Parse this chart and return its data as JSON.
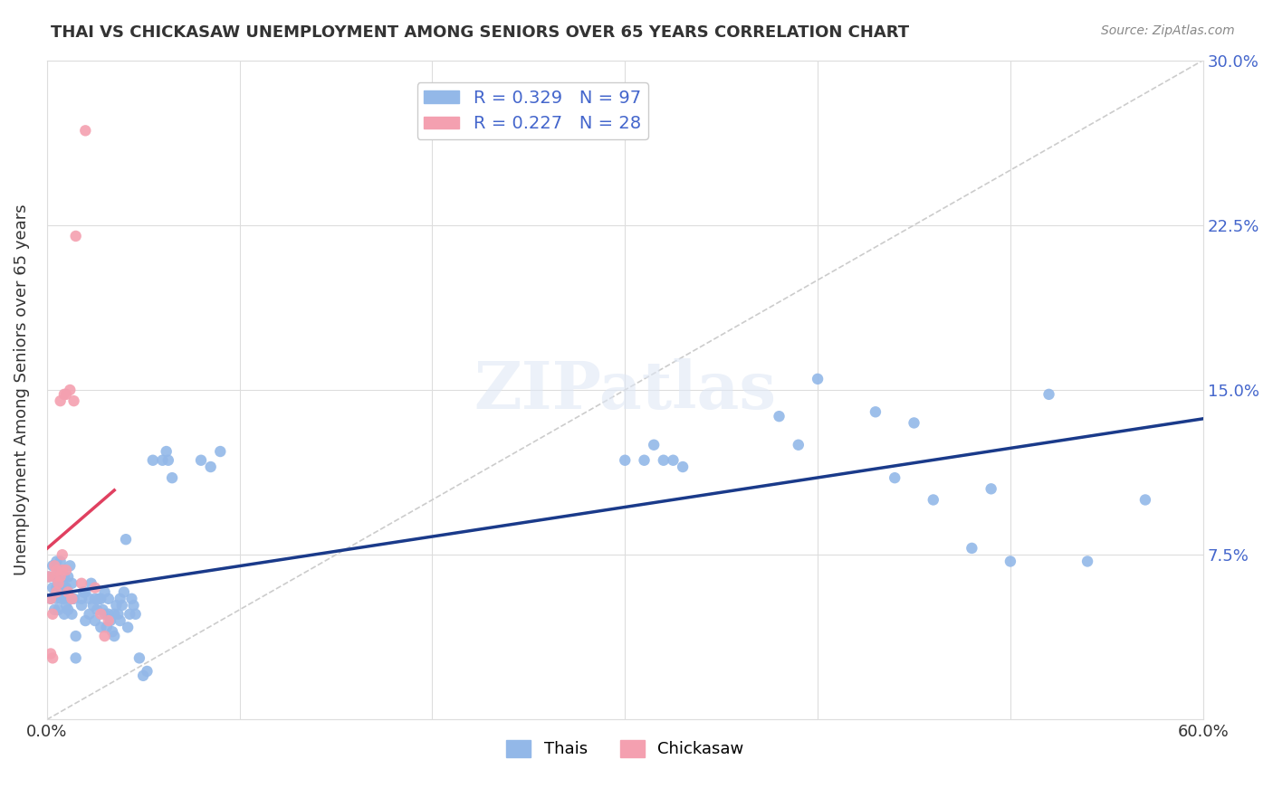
{
  "title": "THAI VS CHICKASAW UNEMPLOYMENT AMONG SENIORS OVER 65 YEARS CORRELATION CHART",
  "source": "Source: ZipAtlas.com",
  "ylabel": "Unemployment Among Seniors over 65 years",
  "xlabel": "",
  "xlim": [
    0.0,
    0.6
  ],
  "ylim": [
    0.0,
    0.3
  ],
  "xticks": [
    0.0,
    0.1,
    0.2,
    0.3,
    0.4,
    0.5,
    0.6
  ],
  "xtick_labels": [
    "0.0%",
    "",
    "",
    "",
    "",
    "",
    "60.0%"
  ],
  "ytick_labels": [
    "",
    "7.5%",
    "15.0%",
    "22.5%",
    "30.0%"
  ],
  "yticks": [
    0.0,
    0.075,
    0.15,
    0.225,
    0.3
  ],
  "blue_color": "#93b8e8",
  "pink_color": "#f4a0b0",
  "blue_line_color": "#1a3a8a",
  "pink_line_color": "#e04060",
  "dashed_line_color": "#cccccc",
  "watermark": "ZIPatlas",
  "legend_R_thai": "R = 0.329",
  "legend_N_thai": "N = 97",
  "legend_R_chickasaw": "R = 0.227",
  "legend_N_chickasaw": "N = 28",
  "thai_x": [
    0.001,
    0.002,
    0.003,
    0.003,
    0.004,
    0.004,
    0.005,
    0.005,
    0.005,
    0.006,
    0.006,
    0.007,
    0.007,
    0.007,
    0.008,
    0.008,
    0.009,
    0.009,
    0.009,
    0.01,
    0.01,
    0.011,
    0.011,
    0.012,
    0.012,
    0.013,
    0.013,
    0.014,
    0.015,
    0.015,
    0.018,
    0.018,
    0.019,
    0.02,
    0.02,
    0.022,
    0.022,
    0.023,
    0.024,
    0.025,
    0.025,
    0.026,
    0.027,
    0.028,
    0.028,
    0.029,
    0.03,
    0.03,
    0.031,
    0.032,
    0.032,
    0.033,
    0.034,
    0.035,
    0.035,
    0.036,
    0.037,
    0.038,
    0.038,
    0.039,
    0.04,
    0.041,
    0.042,
    0.043,
    0.044,
    0.045,
    0.046,
    0.048,
    0.05,
    0.052,
    0.055,
    0.06,
    0.062,
    0.063,
    0.065,
    0.08,
    0.085,
    0.09,
    0.3,
    0.31,
    0.315,
    0.32,
    0.325,
    0.33,
    0.38,
    0.39,
    0.4,
    0.43,
    0.44,
    0.45,
    0.46,
    0.48,
    0.49,
    0.5,
    0.52,
    0.54,
    0.57
  ],
  "thai_y": [
    0.065,
    0.055,
    0.06,
    0.07,
    0.05,
    0.065,
    0.055,
    0.06,
    0.072,
    0.05,
    0.063,
    0.055,
    0.068,
    0.072,
    0.058,
    0.062,
    0.048,
    0.055,
    0.065,
    0.052,
    0.06,
    0.05,
    0.065,
    0.055,
    0.07,
    0.048,
    0.062,
    0.055,
    0.038,
    0.028,
    0.052,
    0.055,
    0.058,
    0.045,
    0.058,
    0.048,
    0.055,
    0.062,
    0.052,
    0.045,
    0.055,
    0.05,
    0.055,
    0.042,
    0.055,
    0.05,
    0.048,
    0.058,
    0.042,
    0.048,
    0.055,
    0.045,
    0.04,
    0.038,
    0.048,
    0.052,
    0.048,
    0.045,
    0.055,
    0.052,
    0.058,
    0.082,
    0.042,
    0.048,
    0.055,
    0.052,
    0.048,
    0.028,
    0.02,
    0.022,
    0.118,
    0.118,
    0.122,
    0.118,
    0.11,
    0.118,
    0.115,
    0.122,
    0.118,
    0.118,
    0.125,
    0.118,
    0.118,
    0.115,
    0.138,
    0.125,
    0.155,
    0.14,
    0.11,
    0.135,
    0.1,
    0.078,
    0.105,
    0.072,
    0.148,
    0.072,
    0.1
  ],
  "chickasaw_x": [
    0.001,
    0.002,
    0.002,
    0.003,
    0.003,
    0.004,
    0.004,
    0.005,
    0.005,
    0.006,
    0.007,
    0.007,
    0.008,
    0.008,
    0.009,
    0.01,
    0.01,
    0.011,
    0.012,
    0.013,
    0.014,
    0.015,
    0.018,
    0.02,
    0.025,
    0.028,
    0.03,
    0.032
  ],
  "chickasaw_y": [
    0.065,
    0.055,
    0.03,
    0.028,
    0.048,
    0.065,
    0.07,
    0.058,
    0.068,
    0.062,
    0.145,
    0.065,
    0.068,
    0.075,
    0.148,
    0.148,
    0.068,
    0.058,
    0.15,
    0.055,
    0.145,
    0.22,
    0.062,
    0.268,
    0.06,
    0.048,
    0.038,
    0.045
  ]
}
